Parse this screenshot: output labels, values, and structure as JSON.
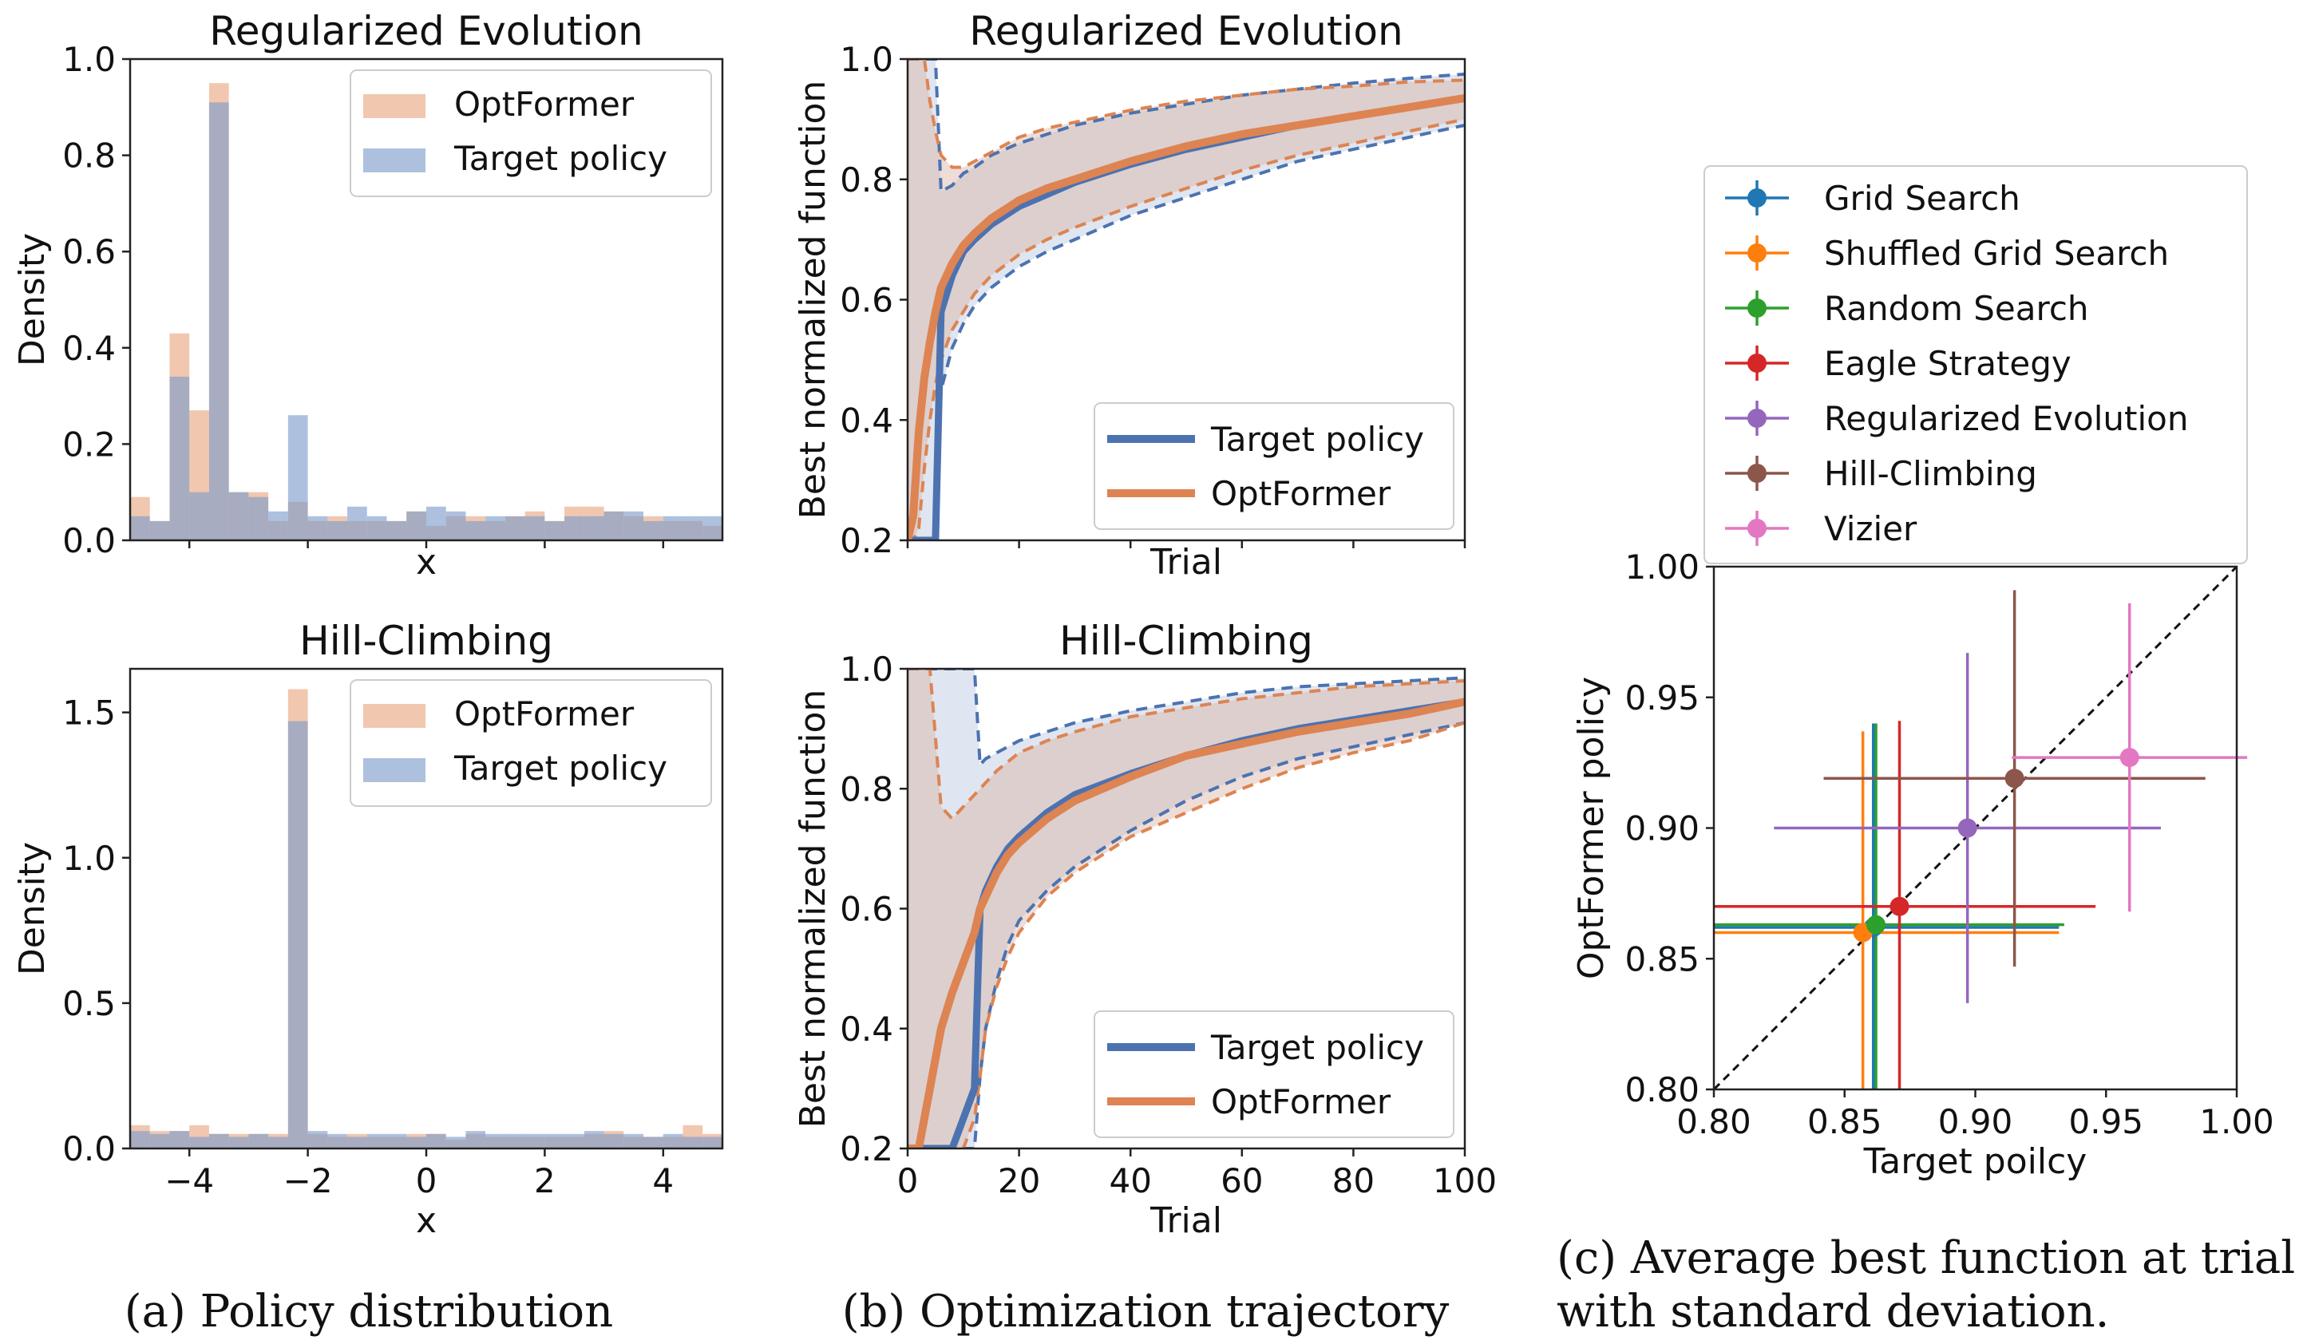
{
  "captions": {
    "a": "(a) Policy distribution",
    "b": "(b) Optimization trajectory",
    "c_line1": "(c) Average best function at trial 100",
    "c_line2": "with standard deviation."
  },
  "colors": {
    "optformer_hist": "#e9a47f",
    "target_hist": "#7b9bc9",
    "target_line": "#4c72b0",
    "optformer_line": "#dd8452"
  },
  "chart_data": [
    {
      "id": "hist_re",
      "type": "bar",
      "title": "Regularized Evolution",
      "xlabel": "x",
      "ylabel": "Density",
      "xlim": [
        -5,
        5
      ],
      "ylim": [
        0,
        1.0
      ],
      "yticks": [
        "0.0",
        "0.2",
        "0.4",
        "0.6",
        "0.8",
        "1.0"
      ],
      "x_ticklabels_visible": false,
      "bin_start": -5,
      "bin_width": 0.3333,
      "legend": {
        "placement": "top-right",
        "entries": [
          "OptFormer",
          "Target policy"
        ]
      },
      "series": [
        {
          "name": "OptFormer",
          "values": [
            0.09,
            0.04,
            0.43,
            0.27,
            0.95,
            0.1,
            0.1,
            0.04,
            0.08,
            0.04,
            0.05,
            0.04,
            0.04,
            0.04,
            0.06,
            0.03,
            0.05,
            0.05,
            0.04,
            0.05,
            0.06,
            0.04,
            0.07,
            0.07,
            0.06,
            0.05,
            0.05,
            0.04,
            0.04,
            0.03
          ]
        },
        {
          "name": "Target policy",
          "values": [
            0.05,
            0.04,
            0.34,
            0.1,
            0.91,
            0.1,
            0.09,
            0.06,
            0.26,
            0.05,
            0.04,
            0.07,
            0.05,
            0.04,
            0.06,
            0.07,
            0.06,
            0.04,
            0.05,
            0.05,
            0.05,
            0.04,
            0.05,
            0.05,
            0.06,
            0.06,
            0.04,
            0.05,
            0.05,
            0.05
          ]
        }
      ]
    },
    {
      "id": "hist_hc",
      "type": "bar",
      "title": "Hill-Climbing",
      "xlabel": "x",
      "ylabel": "Density",
      "xlim": [
        -5,
        5
      ],
      "ylim": [
        0,
        1.65
      ],
      "yticks": [
        "0.0",
        "0.5",
        "1.0",
        "1.5"
      ],
      "xticks": [
        "−4",
        "−2",
        "0",
        "2",
        "4"
      ],
      "bin_start": -5,
      "bin_width": 0.3333,
      "legend": {
        "placement": "top-right",
        "entries": [
          "OptFormer",
          "Target policy"
        ]
      },
      "series": [
        {
          "name": "OptFormer",
          "values": [
            0.08,
            0.06,
            0.06,
            0.08,
            0.05,
            0.05,
            0.05,
            0.05,
            1.58,
            0.05,
            0.04,
            0.05,
            0.04,
            0.04,
            0.05,
            0.05,
            0.03,
            0.05,
            0.04,
            0.04,
            0.04,
            0.04,
            0.04,
            0.05,
            0.06,
            0.04,
            0.04,
            0.04,
            0.08,
            0.05
          ]
        },
        {
          "name": "Target policy",
          "values": [
            0.06,
            0.05,
            0.06,
            0.04,
            0.05,
            0.04,
            0.05,
            0.04,
            1.47,
            0.06,
            0.05,
            0.04,
            0.05,
            0.05,
            0.04,
            0.05,
            0.04,
            0.06,
            0.05,
            0.05,
            0.05,
            0.05,
            0.05,
            0.06,
            0.05,
            0.05,
            0.04,
            0.05,
            0.04,
            0.04
          ]
        }
      ]
    },
    {
      "id": "traj_re",
      "type": "line",
      "title": "Regularized Evolution",
      "xlabel": "Trial",
      "ylabel": "Best normalized function",
      "xlim": [
        0,
        100
      ],
      "ylim": [
        0.2,
        1.0
      ],
      "yticks": [
        "0.2",
        "0.4",
        "0.6",
        "0.8",
        "1.0"
      ],
      "x_ticklabels_visible": false,
      "legend": {
        "placement": "bottom-right",
        "entries": [
          "Target policy",
          "OptFormer"
        ]
      },
      "x": [
        0,
        1,
        2,
        3,
        4,
        5,
        6,
        8,
        10,
        12,
        15,
        20,
        25,
        30,
        40,
        50,
        60,
        70,
        80,
        90,
        100
      ],
      "series": [
        {
          "name": "Target policy",
          "mean": [
            0.2,
            0.2,
            0.2,
            0.2,
            0.2,
            0.2,
            0.58,
            0.64,
            0.68,
            0.7,
            0.725,
            0.755,
            0.775,
            0.795,
            0.825,
            0.85,
            0.87,
            0.89,
            0.905,
            0.92,
            0.935
          ],
          "upper": [
            1.0,
            1.0,
            1.0,
            1.0,
            1.0,
            1.0,
            0.78,
            0.79,
            0.81,
            0.82,
            0.84,
            0.86,
            0.875,
            0.89,
            0.91,
            0.925,
            0.94,
            0.95,
            0.96,
            0.968,
            0.975
          ],
          "lower": [
            0.2,
            0.2,
            0.2,
            0.2,
            0.2,
            0.2,
            0.45,
            0.52,
            0.56,
            0.59,
            0.62,
            0.655,
            0.68,
            0.7,
            0.74,
            0.77,
            0.8,
            0.83,
            0.85,
            0.87,
            0.89
          ]
        },
        {
          "name": "OptFormer",
          "mean": [
            0.2,
            0.24,
            0.38,
            0.47,
            0.53,
            0.58,
            0.62,
            0.66,
            0.69,
            0.71,
            0.735,
            0.765,
            0.785,
            0.8,
            0.83,
            0.855,
            0.875,
            0.89,
            0.905,
            0.92,
            0.935
          ],
          "upper": [
            1.0,
            1.0,
            1.0,
            1.0,
            0.93,
            0.88,
            0.84,
            0.82,
            0.82,
            0.83,
            0.845,
            0.87,
            0.885,
            0.895,
            0.915,
            0.93,
            0.94,
            0.95,
            0.955,
            0.962,
            0.965
          ],
          "lower": [
            0.2,
            0.2,
            0.22,
            0.32,
            0.4,
            0.46,
            0.5,
            0.55,
            0.58,
            0.61,
            0.64,
            0.675,
            0.7,
            0.72,
            0.755,
            0.785,
            0.815,
            0.84,
            0.86,
            0.88,
            0.9
          ]
        }
      ]
    },
    {
      "id": "traj_hc",
      "type": "line",
      "title": "Hill-Climbing",
      "xlabel": "Trial",
      "ylabel": "Best normalized function",
      "xlim": [
        0,
        100
      ],
      "ylim": [
        0.2,
        1.0
      ],
      "yticks": [
        "0.2",
        "0.4",
        "0.6",
        "0.8",
        "1.0"
      ],
      "xticks": [
        "0",
        "20",
        "40",
        "60",
        "80",
        "100"
      ],
      "legend": {
        "placement": "bottom-right",
        "entries": [
          "Target policy",
          "OptFormer"
        ]
      },
      "x": [
        0,
        2,
        4,
        6,
        8,
        10,
        12,
        13,
        14,
        16,
        18,
        20,
        25,
        30,
        40,
        50,
        60,
        70,
        80,
        90,
        100
      ],
      "series": [
        {
          "name": "Target policy",
          "mean": [
            0.2,
            0.2,
            0.2,
            0.2,
            0.2,
            0.25,
            0.3,
            0.6,
            0.63,
            0.67,
            0.7,
            0.72,
            0.76,
            0.79,
            0.825,
            0.855,
            0.88,
            0.9,
            0.915,
            0.93,
            0.945
          ],
          "upper": [
            1.0,
            1.0,
            1.0,
            1.0,
            1.0,
            1.0,
            1.0,
            0.84,
            0.85,
            0.86,
            0.87,
            0.88,
            0.895,
            0.91,
            0.93,
            0.945,
            0.96,
            0.97,
            0.975,
            0.98,
            0.985
          ],
          "lower": [
            0.2,
            0.2,
            0.2,
            0.2,
            0.2,
            0.2,
            0.2,
            0.32,
            0.4,
            0.48,
            0.54,
            0.58,
            0.63,
            0.67,
            0.73,
            0.78,
            0.82,
            0.85,
            0.87,
            0.89,
            0.91
          ]
        },
        {
          "name": "OptFormer",
          "mean": [
            0.2,
            0.2,
            0.3,
            0.4,
            0.46,
            0.51,
            0.56,
            0.6,
            0.62,
            0.66,
            0.69,
            0.71,
            0.75,
            0.78,
            0.82,
            0.855,
            0.875,
            0.895,
            0.91,
            0.925,
            0.945
          ],
          "upper": [
            1.0,
            1.0,
            1.0,
            0.77,
            0.75,
            0.77,
            0.79,
            0.8,
            0.81,
            0.83,
            0.845,
            0.86,
            0.88,
            0.895,
            0.92,
            0.935,
            0.95,
            0.96,
            0.97,
            0.975,
            0.98
          ],
          "lower": [
            0.2,
            0.2,
            0.2,
            0.2,
            0.2,
            0.2,
            0.25,
            0.32,
            0.4,
            0.47,
            0.52,
            0.56,
            0.62,
            0.66,
            0.72,
            0.76,
            0.8,
            0.835,
            0.86,
            0.88,
            0.91
          ]
        }
      ]
    },
    {
      "id": "scatter_c",
      "type": "scatter",
      "xlabel": "Target poilcy",
      "ylabel": "OptFormer policy",
      "xlim": [
        0.8,
        1.0
      ],
      "ylim": [
        0.8,
        1.0
      ],
      "xticks": [
        "0.80",
        "0.85",
        "0.90",
        "0.95",
        "1.00"
      ],
      "yticks": [
        "0.80",
        "0.85",
        "0.90",
        "0.95",
        "1.00"
      ],
      "diagonal": true,
      "legend": {
        "placement": "above",
        "entries": [
          "Grid Search",
          "Shuffled Grid Search",
          "Random Search",
          "Eagle Strategy",
          "Regularized Evolution",
          "Hill-Climbing",
          "Vizier"
        ]
      },
      "points": [
        {
          "name": "Grid Search",
          "color": "#1f77b4",
          "x": 0.861,
          "y": 0.862,
          "xerr": 0.071,
          "yerr": 0.078
        },
        {
          "name": "Shuffled Grid Search",
          "color": "#ff7f0e",
          "x": 0.857,
          "y": 0.86,
          "xerr": 0.075,
          "yerr": 0.077
        },
        {
          "name": "Random Search",
          "color": "#2ca02c",
          "x": 0.862,
          "y": 0.863,
          "xerr": 0.072,
          "yerr": 0.077
        },
        {
          "name": "Eagle Strategy",
          "color": "#d62728",
          "x": 0.871,
          "y": 0.87,
          "xerr": 0.075,
          "yerr": 0.071
        },
        {
          "name": "Regularized Evolution",
          "color": "#9467bd",
          "x": 0.897,
          "y": 0.9,
          "xerr": 0.074,
          "yerr": 0.067
        },
        {
          "name": "Hill-Climbing",
          "color": "#8c564b",
          "x": 0.915,
          "y": 0.919,
          "xerr": 0.073,
          "yerr": 0.072
        },
        {
          "name": "Vizier",
          "color": "#e377c2",
          "x": 0.959,
          "y": 0.927,
          "xerr": 0.045,
          "yerr": 0.059
        }
      ]
    }
  ]
}
